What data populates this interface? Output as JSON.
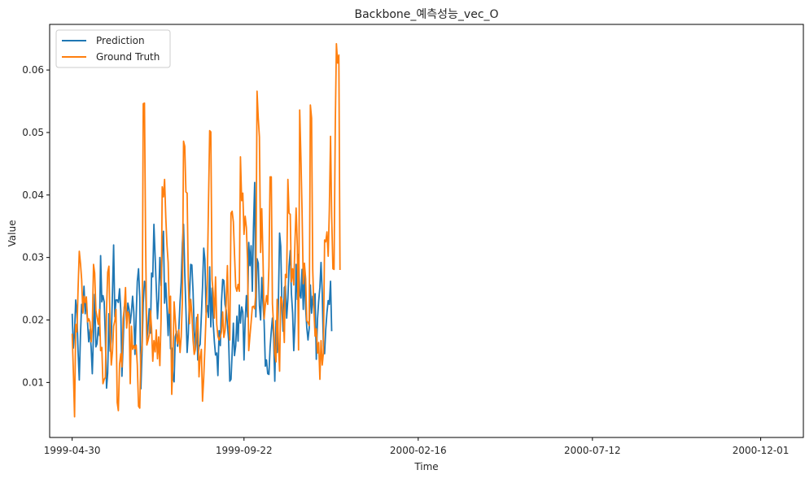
{
  "chart_data": {
    "type": "line",
    "title": "Backbone_예측성능_vec_O",
    "xlabel": "Time",
    "ylabel": "Value",
    "x_range": [
      "1999-04-11",
      "2001-01-06"
    ],
    "ylim": [
      0.0012,
      0.0673
    ],
    "x_ticks": [
      "1999-04-30",
      "1999-09-22",
      "2000-02-16",
      "2000-07-12",
      "2000-12-01"
    ],
    "y_ticks": [
      0.01,
      0.02,
      0.03,
      0.04,
      0.05,
      0.06
    ],
    "y_tick_labels": [
      "0.01",
      "0.02",
      "0.03",
      "0.04",
      "0.05",
      "0.06"
    ],
    "grid": false,
    "legend": "top-left",
    "x_start": "1999-04-30",
    "x_step_days": 1,
    "series": [
      {
        "name": "Prediction",
        "color": "#1f77b4",
        "values": [
          0.021,
          0.0155,
          0.018,
          0.0232,
          0.021,
          0.015,
          0.0104,
          0.0178,
          0.0225,
          0.0212,
          0.0254,
          0.021,
          0.0232,
          0.0195,
          0.0165,
          0.0185,
          0.0155,
          0.0114,
          0.018,
          0.0241,
          0.0157,
          0.0162,
          0.0188,
          0.0175,
          0.0303,
          0.0229,
          0.0239,
          0.0229,
          0.0175,
          0.0091,
          0.0115,
          0.021,
          0.015,
          0.017,
          0.0245,
          0.032,
          0.0205,
          0.0232,
          0.0232,
          0.0228,
          0.025,
          0.0215,
          0.011,
          0.0162,
          0.0221,
          0.0227,
          0.0193,
          0.0227,
          0.0217,
          0.0195,
          0.0213,
          0.0238,
          0.0212,
          0.0145,
          0.0206,
          0.0262,
          0.0282,
          0.0236,
          0.009,
          0.0154,
          0.0228,
          0.0262,
          0.0255,
          0.0166,
          0.0189,
          0.0218,
          0.0179,
          0.0275,
          0.0269,
          0.0353,
          0.0301,
          0.0252,
          0.0202,
          0.0234,
          0.03,
          0.0255,
          0.031,
          0.0342,
          0.0227,
          0.0259,
          0.022,
          0.0175,
          0.0234,
          0.0154,
          0.0155,
          0.0109,
          0.0101,
          0.0173,
          0.0182,
          0.0158,
          0.0185,
          0.0228,
          0.026,
          0.0323,
          0.0353,
          0.0275,
          0.0218,
          0.0148,
          0.0177,
          0.0237,
          0.0289,
          0.0288,
          0.0245,
          0.0183,
          0.0154,
          0.0204,
          0.0136,
          0.0157,
          0.0161,
          0.0207,
          0.0252,
          0.0315,
          0.0297,
          0.0212,
          0.0223,
          0.0204,
          0.0285,
          0.0189,
          0.0251,
          0.0196,
          0.0165,
          0.0144,
          0.0147,
          0.0111,
          0.0183,
          0.0159,
          0.0229,
          0.0265,
          0.0263,
          0.0225,
          0.0216,
          0.0192,
          0.0168,
          0.0102,
          0.0105,
          0.0147,
          0.0195,
          0.0143,
          0.0159,
          0.0206,
          0.0166,
          0.0224,
          0.0195,
          0.0221,
          0.0213,
          0.0136,
          0.0198,
          0.0239,
          0.0205,
          0.0324,
          0.0287,
          0.0319,
          0.0246,
          0.0347,
          0.042,
          0.0205,
          0.0298,
          0.0291,
          0.0223,
          0.02,
          0.0268,
          0.0227,
          0.0197,
          0.0126,
          0.0136,
          0.0114,
          0.0113,
          0.0155,
          0.0182,
          0.0203,
          0.0171,
          0.0102,
          0.0199,
          0.0148,
          0.0225,
          0.0339,
          0.0318,
          0.022,
          0.0182,
          0.0252,
          0.0255,
          0.0203,
          0.0234,
          0.0286,
          0.0311,
          0.0243,
          0.0211,
          0.0151,
          0.0197,
          0.0289,
          0.0233,
          0.0305,
          0.0242,
          0.0235,
          0.0281,
          0.0217,
          0.0274,
          0.0219,
          0.0188,
          0.0168,
          0.0187,
          0.0256,
          0.0211,
          0.0238,
          0.0219,
          0.0242,
          0.0137,
          0.0202,
          0.023,
          0.0252,
          0.0292,
          0.0243,
          0.0158,
          0.0146,
          0.0185,
          0.0212,
          0.0231,
          0.0225,
          0.0262,
          0.0182
        ]
      },
      {
        "name": "Ground Truth",
        "color": "#ff7f0e",
        "values": [
          0.0178,
          0.0118,
          0.0045,
          0.0193,
          0.0181,
          0.0249,
          0.031,
          0.029,
          0.0265,
          0.0211,
          0.0238,
          0.0228,
          0.0237,
          0.0197,
          0.0202,
          0.0197,
          0.0165,
          0.0188,
          0.0289,
          0.0275,
          0.0216,
          0.0204,
          0.0193,
          0.0217,
          0.0151,
          0.0156,
          0.0098,
          0.0105,
          0.0108,
          0.0217,
          0.0276,
          0.0286,
          0.0184,
          0.0128,
          0.015,
          0.019,
          0.0199,
          0.0217,
          0.0068,
          0.0055,
          0.0129,
          0.0146,
          0.0125,
          0.0202,
          0.0218,
          0.0252,
          0.0187,
          0.0213,
          0.0208,
          0.0098,
          0.019,
          0.0153,
          0.0159,
          0.0154,
          0.016,
          0.0128,
          0.0062,
          0.0059,
          0.0144,
          0.0159,
          0.0546,
          0.0547,
          0.0325,
          0.016,
          0.0167,
          0.0176,
          0.0215,
          0.0187,
          0.0134,
          0.0167,
          0.0149,
          0.0184,
          0.0138,
          0.0173,
          0.0127,
          0.0202,
          0.0413,
          0.0397,
          0.0425,
          0.0364,
          0.0321,
          0.0292,
          0.0211,
          0.0238,
          0.0081,
          0.0132,
          0.0229,
          0.0202,
          0.0172,
          0.0162,
          0.0184,
          0.0148,
          0.0173,
          0.0232,
          0.0486,
          0.0478,
          0.0405,
          0.0403,
          0.0269,
          0.0194,
          0.0233,
          0.0211,
          0.0168,
          0.0145,
          0.0153,
          0.0187,
          0.0209,
          0.0109,
          0.0141,
          0.0153,
          0.007,
          0.0108,
          0.0154,
          0.0209,
          0.0258,
          0.0383,
          0.0503,
          0.0501,
          0.0265,
          0.0244,
          0.0203,
          0.0269,
          0.0193,
          0.0174,
          0.0168,
          0.0173,
          0.0181,
          0.0213,
          0.0172,
          0.0183,
          0.0229,
          0.0287,
          0.0201,
          0.0168,
          0.0371,
          0.0374,
          0.0357,
          0.0306,
          0.0253,
          0.0246,
          0.0257,
          0.0246,
          0.0461,
          0.0391,
          0.0403,
          0.0337,
          0.0366,
          0.0348,
          0.0295,
          0.0151,
          0.0175,
          0.0196,
          0.0221,
          0.0222,
          0.0218,
          0.0243,
          0.0566,
          0.0523,
          0.0493,
          0.0308,
          0.0378,
          0.0299,
          0.0202,
          0.0224,
          0.0239,
          0.0225,
          0.0285,
          0.0429,
          0.0429,
          0.0226,
          0.0189,
          0.0146,
          0.0133,
          0.0233,
          0.0165,
          0.0118,
          0.0237,
          0.0232,
          0.0214,
          0.0164,
          0.0273,
          0.0268,
          0.0425,
          0.0371,
          0.0369,
          0.0261,
          0.0282,
          0.0256,
          0.0325,
          0.0379,
          0.0317,
          0.0152,
          0.0536,
          0.0459,
          0.0374,
          0.0258,
          0.0291,
          0.0266,
          0.0199,
          0.0196,
          0.0191,
          0.0544,
          0.0523,
          0.0281,
          0.0215,
          0.0174,
          0.0186,
          0.0147,
          0.0164,
          0.0105,
          0.0167,
          0.0128,
          0.0147,
          0.0328,
          0.0325,
          0.0341,
          0.0302,
          0.0375,
          0.0494,
          0.0365,
          0.0282,
          0.0281,
          0.0509,
          0.0642,
          0.0611,
          0.0624,
          0.028
        ]
      }
    ]
  }
}
